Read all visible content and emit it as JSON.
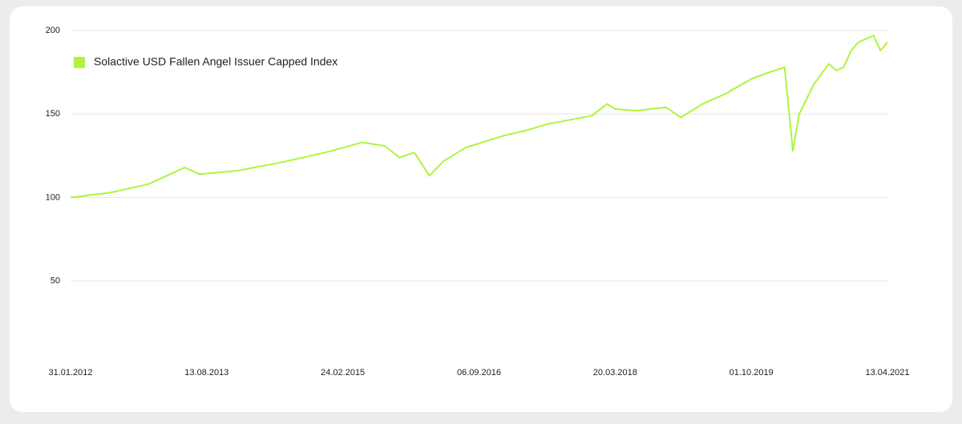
{
  "chart_data": {
    "type": "line",
    "x": [
      "31.01.2012",
      "15.07.2012",
      "15.12.2012",
      "15.05.2013",
      "15.07.2013",
      "15.12.2013",
      "15.06.2014",
      "15.12.2014",
      "15.05.2015",
      "15.08.2015",
      "15.10.2015",
      "15.12.2015",
      "15.02.2016",
      "15.04.2016",
      "15.07.2016",
      "15.12.2016",
      "15.03.2017",
      "15.06.2017",
      "15.12.2017",
      "15.02.2018",
      "20.03.2018",
      "15.06.2018",
      "15.10.2018",
      "15.12.2018",
      "15.03.2019",
      "15.06.2019",
      "01.10.2019",
      "15.12.2019",
      "15.02.2020",
      "20.03.2020",
      "15.04.2020",
      "15.06.2020",
      "15.08.2020",
      "15.09.2020",
      "15.10.2020",
      "15.11.2020",
      "15.12.2020",
      "15.01.2021",
      "15.02.2021",
      "15.03.2021",
      "13.04.2021"
    ],
    "series": [
      {
        "name": "Solactive USD Fallen Angel Issuer Capped Index",
        "color": "#acf53c",
        "values": [
          100,
          103,
          108,
          118,
          114,
          116,
          121,
          127,
          133,
          131,
          124,
          127,
          113,
          122,
          130,
          137,
          140,
          144,
          149,
          156,
          153,
          152,
          154,
          148,
          156,
          162,
          171,
          175,
          178,
          128,
          150,
          168,
          180,
          176,
          178,
          188,
          193,
          195,
          197,
          188,
          193
        ]
      }
    ],
    "xlim": [
      "31.01.2012",
      "13.04.2021"
    ],
    "xticks": [
      "31.01.2012",
      "13.08.2013",
      "24.02.2015",
      "06.09.2016",
      "20.03.2018",
      "01.10.2019",
      "13.04.2021"
    ],
    "ylim": [
      0,
      200
    ],
    "yticks": [
      50,
      100,
      150,
      200
    ],
    "grid": true,
    "legend": "top-left"
  }
}
